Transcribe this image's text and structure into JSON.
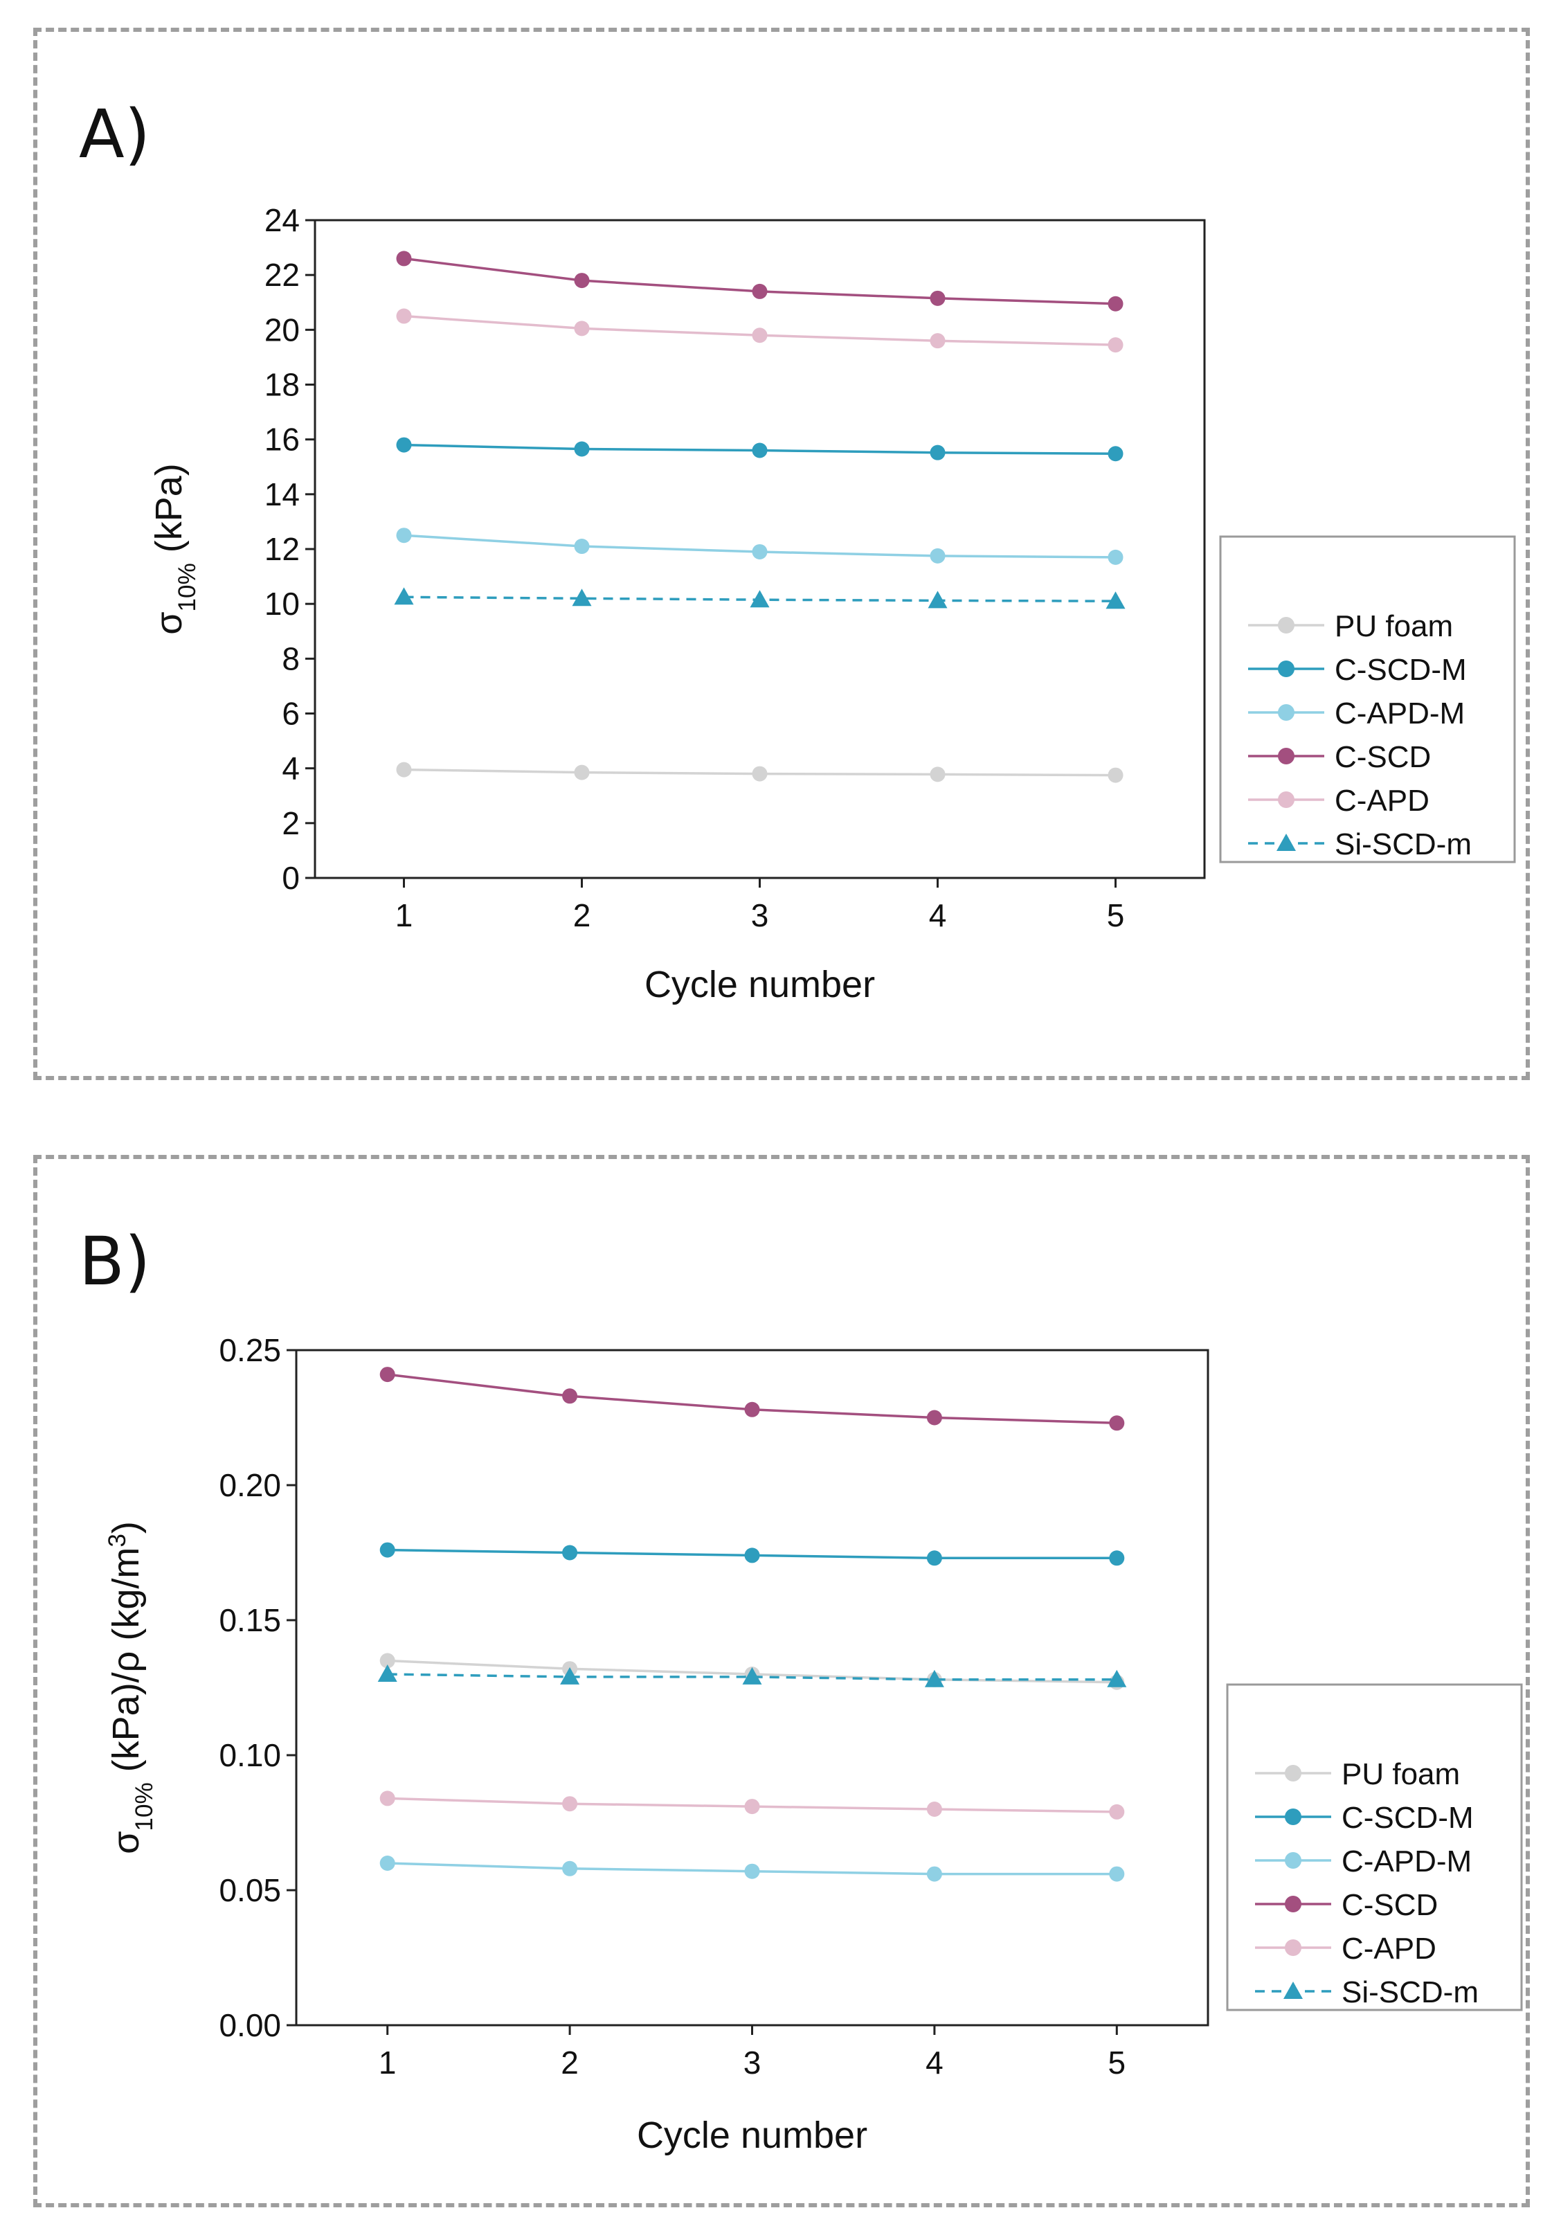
{
  "panels": [
    {
      "label": "A)"
    },
    {
      "label": "B)"
    }
  ],
  "colors": {
    "pu_foam": "#d3d3d3",
    "c_scd_m": "#2e9dbd",
    "c_apd_m": "#8fd0e4",
    "c_scd": "#a34f7f",
    "c_apd": "#e3bccd",
    "si_scd_m": "#2e9dbd"
  },
  "chart_data": [
    {
      "type": "line",
      "panel": "A)",
      "title": "",
      "xlabel": "Cycle number",
      "ylabel": "σ10% (kPa)",
      "ylabel_parts": {
        "sym": "σ",
        "sub": "10%",
        "rest": " (kPa)"
      },
      "xlim": [
        0.5,
        5.5
      ],
      "ylim": [
        0,
        24
      ],
      "xticks": [
        1,
        2,
        3,
        4,
        5
      ],
      "yticks": [
        0,
        2,
        4,
        6,
        8,
        10,
        12,
        14,
        16,
        18,
        20,
        22,
        24
      ],
      "ytick_labels": [
        "0",
        "2",
        "4",
        "6",
        "8",
        "10",
        "12",
        "14",
        "16",
        "18",
        "20",
        "22",
        "24"
      ],
      "grid": false,
      "legend": "right-outside",
      "x": [
        1,
        2,
        3,
        4,
        5
      ],
      "series": [
        {
          "name": "PU foam",
          "color_key": "pu_foam",
          "marker": "circle",
          "dash": false,
          "values": [
            3.95,
            3.85,
            3.8,
            3.78,
            3.75
          ]
        },
        {
          "name": "C-SCD-M",
          "color_key": "c_scd_m",
          "marker": "circle",
          "dash": false,
          "values": [
            15.8,
            15.65,
            15.6,
            15.52,
            15.48
          ]
        },
        {
          "name": "C-APD-M",
          "color_key": "c_apd_m",
          "marker": "circle",
          "dash": false,
          "values": [
            12.5,
            12.1,
            11.9,
            11.75,
            11.7
          ]
        },
        {
          "name": "C-SCD",
          "color_key": "c_scd",
          "marker": "circle",
          "dash": false,
          "values": [
            22.6,
            21.8,
            21.4,
            21.15,
            20.95
          ]
        },
        {
          "name": "C-APD",
          "color_key": "c_apd",
          "marker": "circle",
          "dash": false,
          "values": [
            20.5,
            20.05,
            19.8,
            19.6,
            19.45
          ]
        },
        {
          "name": "Si-SCD-m",
          "color_key": "si_scd_m",
          "marker": "triangle",
          "dash": true,
          "values": [
            10.25,
            10.2,
            10.15,
            10.12,
            10.1
          ]
        }
      ]
    },
    {
      "type": "line",
      "panel": "B)",
      "title": "",
      "xlabel": "Cycle number",
      "ylabel": "σ10% (kPa)/ρ (kg/m3)",
      "ylabel_parts": {
        "sym": "σ",
        "sub": "10%",
        "rest": " (kPa)/ρ (kg/m",
        "sup": "3",
        "end": ")"
      },
      "xlim": [
        0.5,
        5.5
      ],
      "ylim": [
        0,
        0.25
      ],
      "xticks": [
        1,
        2,
        3,
        4,
        5
      ],
      "yticks": [
        0,
        0.05,
        0.1,
        0.15,
        0.2,
        0.25
      ],
      "ytick_labels": [
        "0.00",
        "0.05",
        "0.10",
        "0.15",
        "0.20",
        "0.25"
      ],
      "grid": false,
      "legend": "right-outside",
      "x": [
        1,
        2,
        3,
        4,
        5
      ],
      "series": [
        {
          "name": "PU foam",
          "color_key": "pu_foam",
          "marker": "circle",
          "dash": false,
          "values": [
            0.135,
            0.132,
            0.13,
            0.128,
            0.127
          ]
        },
        {
          "name": "C-SCD-M",
          "color_key": "c_scd_m",
          "marker": "circle",
          "dash": false,
          "values": [
            0.176,
            0.175,
            0.174,
            0.173,
            0.173
          ]
        },
        {
          "name": "C-APD-M",
          "color_key": "c_apd_m",
          "marker": "circle",
          "dash": false,
          "values": [
            0.06,
            0.058,
            0.057,
            0.056,
            0.056
          ]
        },
        {
          "name": "C-SCD",
          "color_key": "c_scd",
          "marker": "circle",
          "dash": false,
          "values": [
            0.241,
            0.233,
            0.228,
            0.225,
            0.223
          ]
        },
        {
          "name": "C-APD",
          "color_key": "c_apd",
          "marker": "circle",
          "dash": false,
          "values": [
            0.084,
            0.082,
            0.081,
            0.08,
            0.079
          ]
        },
        {
          "name": "Si-SCD-m",
          "color_key": "si_scd_m",
          "marker": "triangle",
          "dash": true,
          "values": [
            0.13,
            0.129,
            0.129,
            0.128,
            0.128
          ]
        }
      ]
    }
  ]
}
